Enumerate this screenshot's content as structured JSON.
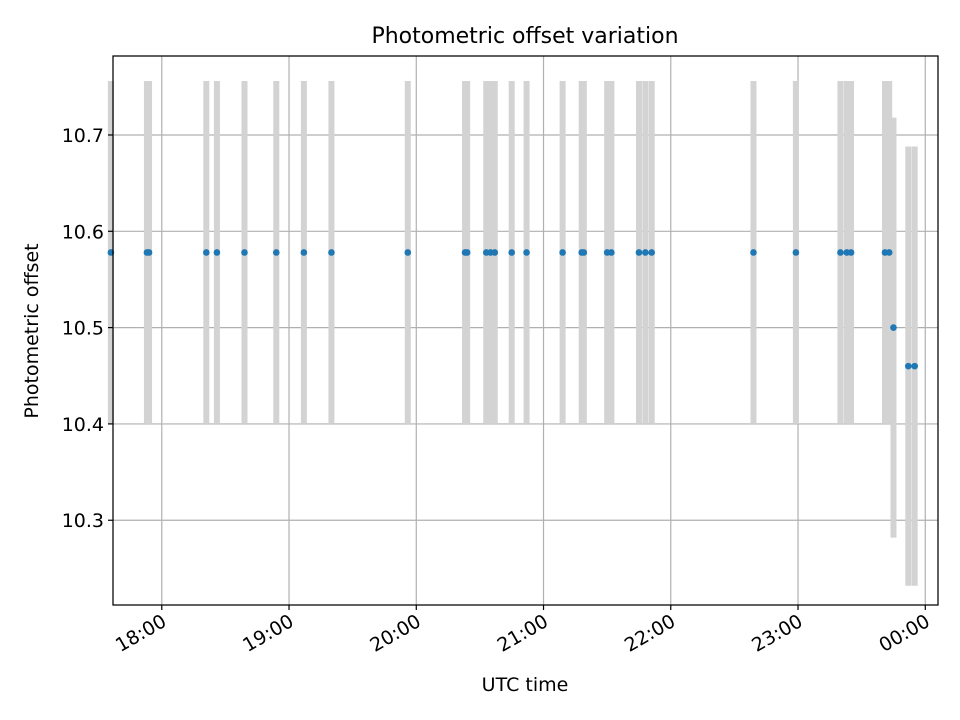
{
  "chart_data": {
    "type": "scatter",
    "title": "Photometric offset variation",
    "xlabel": "UTC time",
    "ylabel": "Photometric offset",
    "x_axis_kind": "time",
    "xlim": [
      "17:37",
      "00:06"
    ],
    "ylim": [
      10.212,
      10.782
    ],
    "grid": true,
    "x_ticks": [
      {
        "time": "18:00",
        "label": "18:00"
      },
      {
        "time": "19:00",
        "label": "19:00"
      },
      {
        "time": "20:00",
        "label": "20:00"
      },
      {
        "time": "21:00",
        "label": "21:00"
      },
      {
        "time": "22:00",
        "label": "22:00"
      },
      {
        "time": "23:00",
        "label": "23:00"
      },
      {
        "time": "00:00",
        "label": "00:00"
      }
    ],
    "y_ticks": [
      {
        "value": 10.3,
        "label": "10.3"
      },
      {
        "value": 10.4,
        "label": "10.4"
      },
      {
        "value": 10.5,
        "label": "10.5"
      },
      {
        "value": 10.6,
        "label": "10.6"
      },
      {
        "value": 10.7,
        "label": "10.7"
      }
    ],
    "point_color": "#1f77b4",
    "errorbar_color": "#d3d3d3",
    "points": [
      {
        "x": "17:36",
        "y": 10.578,
        "yerr": 0.178
      },
      {
        "x": "17:53",
        "y": 10.578,
        "yerr": 0.178
      },
      {
        "x": "17:54",
        "y": 10.578,
        "yerr": 0.178
      },
      {
        "x": "18:21",
        "y": 10.578,
        "yerr": 0.178
      },
      {
        "x": "18:26",
        "y": 10.578,
        "yerr": 0.178
      },
      {
        "x": "18:39",
        "y": 10.578,
        "yerr": 0.178
      },
      {
        "x": "18:54",
        "y": 10.578,
        "yerr": 0.178
      },
      {
        "x": "19:07",
        "y": 10.578,
        "yerr": 0.178
      },
      {
        "x": "19:20",
        "y": 10.578,
        "yerr": 0.178
      },
      {
        "x": "19:56",
        "y": 10.578,
        "yerr": 0.178
      },
      {
        "x": "20:23",
        "y": 10.578,
        "yerr": 0.178
      },
      {
        "x": "20:24",
        "y": 10.578,
        "yerr": 0.178
      },
      {
        "x": "20:33",
        "y": 10.578,
        "yerr": 0.178
      },
      {
        "x": "20:35",
        "y": 10.578,
        "yerr": 0.178
      },
      {
        "x": "20:37",
        "y": 10.578,
        "yerr": 0.178
      },
      {
        "x": "20:45",
        "y": 10.578,
        "yerr": 0.178
      },
      {
        "x": "20:52",
        "y": 10.578,
        "yerr": 0.178
      },
      {
        "x": "21:09",
        "y": 10.578,
        "yerr": 0.178
      },
      {
        "x": "21:18",
        "y": 10.578,
        "yerr": 0.178
      },
      {
        "x": "21:19",
        "y": 10.578,
        "yerr": 0.178
      },
      {
        "x": "21:30",
        "y": 10.578,
        "yerr": 0.178
      },
      {
        "x": "21:32",
        "y": 10.578,
        "yerr": 0.178
      },
      {
        "x": "21:45",
        "y": 10.578,
        "yerr": 0.178
      },
      {
        "x": "21:48",
        "y": 10.578,
        "yerr": 0.178
      },
      {
        "x": "21:51",
        "y": 10.578,
        "yerr": 0.178
      },
      {
        "x": "22:39",
        "y": 10.578,
        "yerr": 0.178
      },
      {
        "x": "22:59",
        "y": 10.578,
        "yerr": 0.178
      },
      {
        "x": "23:20",
        "y": 10.578,
        "yerr": 0.178
      },
      {
        "x": "23:23",
        "y": 10.578,
        "yerr": 0.178
      },
      {
        "x": "23:25",
        "y": 10.578,
        "yerr": 0.178
      },
      {
        "x": "23:41",
        "y": 10.578,
        "yerr": 0.178
      },
      {
        "x": "23:43",
        "y": 10.578,
        "yerr": 0.178
      },
      {
        "x": "23:45",
        "y": 10.5,
        "yerr": 0.218
      },
      {
        "x": "23:52",
        "y": 10.46,
        "yerr": 0.228
      },
      {
        "x": "23:55",
        "y": 10.46,
        "yerr": 0.228
      }
    ]
  }
}
